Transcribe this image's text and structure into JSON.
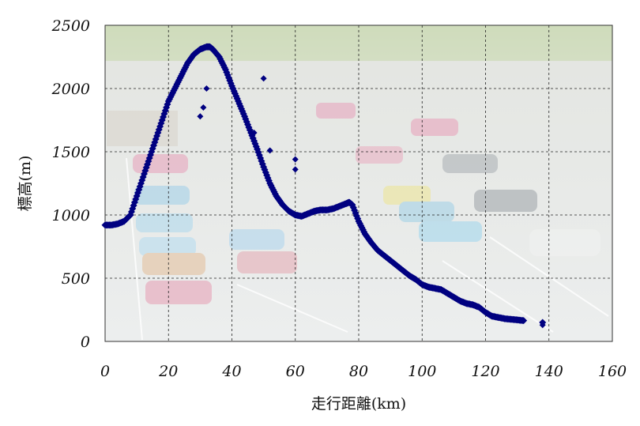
{
  "chart_data": {
    "type": "scatter",
    "title": "",
    "xlabel": "走行距離(km)",
    "ylabel": "標高(m)",
    "xlim": [
      0,
      160
    ],
    "ylim": [
      0,
      2500
    ],
    "x_ticks": [
      "0",
      "20",
      "40",
      "60",
      "80",
      "100",
      "120",
      "140",
      "160"
    ],
    "y_ticks": [
      "0",
      "500",
      "1000",
      "1500",
      "2000",
      "2500"
    ],
    "grid": true,
    "legend": "none",
    "marker": "diamond",
    "marker_color": "#000080",
    "background": "aerial photo of a parking lot with parked cars (faded)",
    "series": [
      {
        "x": [
          0,
          2,
          4,
          6,
          8,
          10,
          12,
          14,
          16,
          18,
          20,
          22,
          24,
          26,
          28,
          30,
          32,
          33,
          34,
          36,
          38,
          40,
          42,
          44,
          46,
          48,
          50,
          52,
          54,
          56,
          58,
          60,
          62,
          64,
          66,
          68,
          70,
          72,
          74,
          76,
          77,
          78,
          80,
          82,
          84,
          86,
          88,
          90,
          92,
          94,
          96,
          98,
          100,
          102,
          104,
          106,
          108,
          110,
          112,
          114,
          116,
          118,
          120,
          122,
          124,
          126,
          128,
          130,
          132,
          138
        ],
        "y": [
          920,
          920,
          930,
          950,
          1000,
          1150,
          1300,
          1450,
          1600,
          1750,
          1900,
          2000,
          2100,
          2200,
          2270,
          2310,
          2330,
          2330,
          2310,
          2250,
          2150,
          2020,
          1900,
          1780,
          1650,
          1520,
          1380,
          1250,
          1150,
          1080,
          1030,
          1000,
          990,
          1010,
          1030,
          1040,
          1040,
          1050,
          1070,
          1090,
          1100,
          1080,
          950,
          850,
          780,
          720,
          680,
          640,
          600,
          560,
          520,
          490,
          450,
          430,
          420,
          410,
          380,
          350,
          320,
          300,
          290,
          270,
          230,
          200,
          190,
          180,
          175,
          170,
          165,
          150
        ]
      }
    ],
    "scatter_outliers": [
      {
        "x": 30,
        "y": 1780
      },
      {
        "x": 31,
        "y": 1850
      },
      {
        "x": 32,
        "y": 2000
      },
      {
        "x": 47,
        "y": 1650
      },
      {
        "x": 50,
        "y": 2080
      },
      {
        "x": 52,
        "y": 1510
      },
      {
        "x": 60,
        "y": 1440
      },
      {
        "x": 60,
        "y": 1360
      },
      {
        "x": 138,
        "y": 130
      }
    ]
  }
}
